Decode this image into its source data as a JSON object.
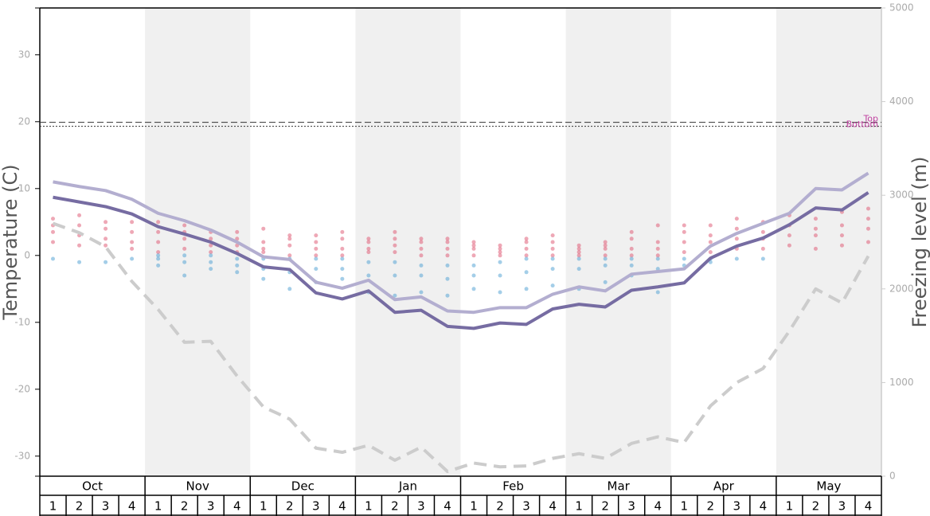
{
  "chart_data": {
    "type": "line",
    "months": [
      "Oct",
      "Nov",
      "Dec",
      "Jan",
      "Feb",
      "Mar",
      "Apr",
      "May"
    ],
    "weeks": [
      "1",
      "2",
      "3",
      "4"
    ],
    "ylabel": "Temperature (C)",
    "y2label": "Freezing level (m)",
    "ylim": [
      -33,
      37
    ],
    "yticks": [
      -30,
      -20,
      -10,
      0,
      10,
      20,
      30
    ],
    "y2lim": [
      0,
      5000
    ],
    "y2ticks": [
      0,
      1000,
      2000,
      3000,
      4000,
      5000
    ],
    "shade_color": "#f0f0f0",
    "series": [
      {
        "color": "#b3aed0",
        "dash": "solid",
        "values": [
          11.0,
          10.3,
          9.7,
          8.4,
          6.3,
          5.2,
          3.8,
          2.0,
          -0.2,
          -0.6,
          -4.0,
          -4.9,
          -3.7,
          -6.6,
          -6.2,
          -8.3,
          -8.5,
          -7.8,
          -7.8,
          -5.8,
          -4.7,
          -5.3,
          -2.8,
          -2.4,
          -2.0,
          1.4,
          3.3,
          4.8,
          6.3,
          10.0,
          9.8,
          12.3
        ]
      },
      {
        "color": "#766ca2",
        "dash": "solid",
        "values": [
          8.7,
          8.0,
          7.3,
          6.2,
          4.3,
          3.2,
          2.0,
          0.3,
          -1.7,
          -2.1,
          -5.6,
          -6.5,
          -5.3,
          -8.5,
          -8.2,
          -10.6,
          -10.9,
          -10.1,
          -10.3,
          -8.0,
          -7.3,
          -7.7,
          -5.2,
          -4.7,
          -4.1,
          -0.4,
          1.4,
          2.6,
          4.6,
          7.1,
          6.8,
          9.4
        ]
      },
      {
        "color": "#cccccc",
        "dash": "dashed",
        "axis": "y2",
        "values": [
          2700,
          2600,
          2450,
          2080,
          1780,
          1430,
          1440,
          1070,
          740,
          610,
          300,
          255,
          330,
          170,
          310,
          50,
          140,
          100,
          110,
          190,
          240,
          190,
          350,
          420,
          360,
          750,
          1000,
          1150,
          1550,
          2000,
          1850,
          2350
        ]
      }
    ],
    "dots": [
      {
        "color": "#e0607a",
        "values": [
          [
            2,
            3.5,
            4.5,
            5.5
          ],
          [
            1.5,
            3,
            4.5,
            6
          ],
          [
            1.5,
            2.5,
            4,
            5
          ],
          [
            1,
            2,
            3.5,
            5
          ],
          [
            0.5,
            2,
            3.5,
            5
          ],
          [
            1,
            2.5,
            3.5,
            4.5
          ],
          [
            0.5,
            1.5,
            2.5,
            3.5
          ],
          [
            0.5,
            1.5,
            2.5,
            3.5
          ],
          [
            0.5,
            1,
            2,
            4
          ],
          [
            0,
            1.5,
            2.5,
            3
          ],
          [
            0,
            1,
            2,
            3
          ],
          [
            0,
            1,
            2.5,
            3.5
          ],
          [
            0.5,
            1,
            2,
            2.5
          ],
          [
            0.5,
            1.5,
            2.5,
            3.5
          ],
          [
            0,
            1,
            2,
            2.5
          ],
          [
            0,
            1,
            2,
            2.5
          ],
          [
            0,
            1,
            1.5,
            2
          ],
          [
            0,
            0.5,
            1,
            1.5
          ],
          [
            0,
            1,
            2,
            2.5
          ],
          [
            0,
            1,
            2,
            3
          ],
          [
            0,
            0.5,
            1,
            1.5
          ],
          [
            0,
            1,
            1.5,
            2
          ],
          [
            0,
            1,
            2.5,
            3.5
          ],
          [
            0,
            1,
            2,
            4.5
          ],
          [
            0.5,
            2,
            3.5,
            4.5
          ],
          [
            0.5,
            2,
            3,
            4.5
          ],
          [
            1,
            2.5,
            4,
            5.5
          ],
          [
            1,
            2.5,
            3.5,
            5
          ],
          [
            1.5,
            3,
            4.5,
            6
          ],
          [
            1,
            3,
            4,
            5.5
          ],
          [
            1.5,
            3,
            4.5,
            6.5
          ],
          [
            2,
            4,
            5.5,
            7
          ]
        ]
      },
      {
        "color": "#5aa5d5",
        "values": [
          [
            -0.5
          ],
          [
            -1
          ],
          [
            -1
          ],
          [
            -0.5
          ],
          [
            -1.5,
            -0.5,
            0
          ],
          [
            -3,
            -1,
            0
          ],
          [
            -2,
            -1,
            0
          ],
          [
            -2.5,
            -1.5,
            -0.5
          ],
          [
            -3.5,
            -2,
            -0.5
          ],
          [
            -5,
            -2.5,
            -0.5
          ],
          [
            -4,
            -2,
            -0.5
          ],
          [
            -3.5,
            -2,
            -0.5
          ],
          [
            -5.5,
            -3,
            -1
          ],
          [
            -6,
            -3,
            -1
          ],
          [
            -5.5,
            -3,
            -1.5
          ],
          [
            -6,
            -3.5,
            -1.5
          ],
          [
            -5,
            -3,
            -1.5
          ],
          [
            -5.5,
            -3,
            -1
          ],
          [
            -5,
            -2.5,
            -0.5
          ],
          [
            -4.5,
            -2,
            -0.5
          ],
          [
            -5,
            -2,
            -0.5
          ],
          [
            -4,
            -1.5,
            -0.5
          ],
          [
            -3,
            -1.5,
            -0.5
          ],
          [
            -5.5,
            -2,
            -0.5
          ],
          [
            -1.5,
            -0.5
          ],
          [
            -1,
            -0.5
          ],
          [
            -0.5
          ],
          [
            -0.5
          ],
          [],
          [],
          [],
          []
        ]
      }
    ],
    "ref_lines": [
      {
        "label": "Top",
        "value": 19.9,
        "style": "dashed"
      },
      {
        "label": "Bottom",
        "value": 19.3,
        "style": "dotted"
      }
    ],
    "ref_color": "#c040a0"
  }
}
